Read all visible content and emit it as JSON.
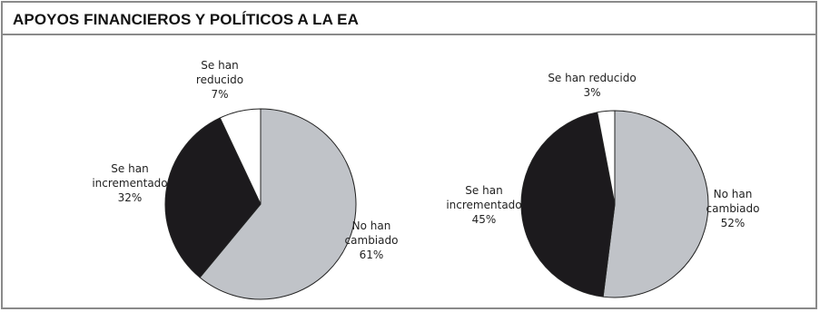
{
  "header": {
    "title": "APOYOS FINANCIEROS Y POLÍTICOS A LA EA"
  },
  "colors": {
    "no_change": "#c0c3c8",
    "increased": "#1c1a1d",
    "reduced": "#ffffff",
    "stroke": "#222222",
    "frame": "#8a8a8a"
  },
  "chart_data": [
    {
      "type": "pie",
      "title": "",
      "slices": [
        {
          "label_lines": [
            "No han",
            "cambiado",
            "61%"
          ],
          "value": 61,
          "color": "#c0c3c8"
        },
        {
          "label_lines": [
            "Se han",
            "incrementado",
            "32%"
          ],
          "value": 32,
          "color": "#1c1a1d"
        },
        {
          "label_lines": [
            "Se han",
            "reducido",
            "7%"
          ],
          "value": 7,
          "color": "#ffffff"
        }
      ]
    },
    {
      "type": "pie",
      "title": "",
      "slices": [
        {
          "label_lines": [
            "No han",
            "cambiado",
            "52%"
          ],
          "value": 52,
          "color": "#c0c3c8"
        },
        {
          "label_lines": [
            "Se han",
            "incrementado",
            "45%"
          ],
          "value": 45,
          "color": "#1c1a1d"
        },
        {
          "label_lines": [
            "Se han reducido",
            "3%"
          ],
          "value": 3,
          "color": "#ffffff"
        }
      ]
    }
  ]
}
